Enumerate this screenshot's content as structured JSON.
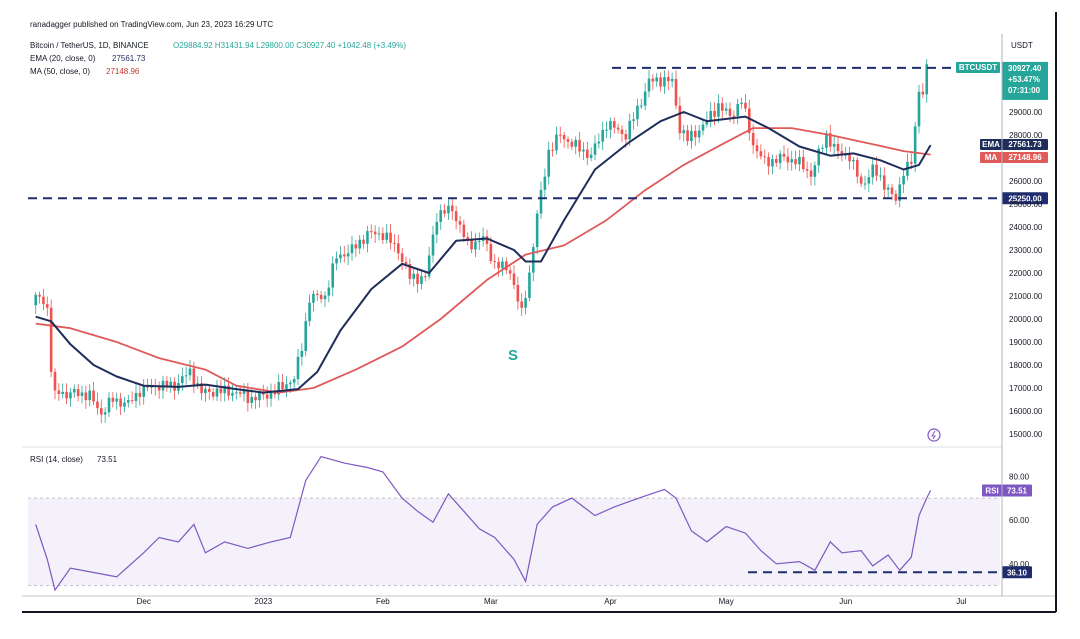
{
  "header": {
    "publisher": "ranadagger published on TradingView.com, Jun 23, 2023 16:29 UTC",
    "symbol_line": "Bitcoin / TetherUS, 1D, BINANCE",
    "ohlc": "O29884.92 H31431.94 L29800.00 C30927.40 +1042.48 (+3.49%)",
    "ema_label": "EMA (20, close, 0)",
    "ema_value": "27561.73",
    "ma_label": "MA (50, close, 0)",
    "ma_value": "27148.96",
    "rsi_label": "RSI (14, close)",
    "rsi_value": "73.51",
    "currency": "USDT"
  },
  "price_tags": {
    "symbol": "BTCUSDT",
    "last": "30927.40",
    "change": "+53.47%",
    "countdown": "07:31:00",
    "ema_tag": "EMA",
    "ema_val": "27561.73",
    "ma_tag": "MA",
    "ma_val": "27148.96",
    "support": "25250.00",
    "rsi_tag": "RSI",
    "rsi_val": "73.51",
    "rsi_support": "36.10"
  },
  "annotation": {
    "s_label": "S"
  },
  "colors": {
    "up": "#26a69a",
    "down": "#ef5350",
    "ema": "#1f2d5a",
    "ma": "#e05a5a",
    "rsi": "#7e57c2",
    "rsi_band": "#ede7f6",
    "dashed": "#1f2d6e"
  },
  "chart_data": [
    {
      "type": "candlestick",
      "title": "Bitcoin / TetherUS, 1D, BINANCE",
      "x_ticks": [
        "Dec",
        "2023",
        "Feb",
        "Mar",
        "Apr",
        "May",
        "Jun",
        "Jul"
      ],
      "y_ticks": [
        15000,
        16000,
        17000,
        18000,
        19000,
        20000,
        21000,
        22000,
        23000,
        24000,
        25000,
        26000,
        28000,
        29000
      ],
      "ylim": [
        14500,
        31800
      ],
      "horizontal_levels": [
        30900,
        25250
      ],
      "close_series": [
        [
          "2022-11-03",
          20600
        ],
        [
          "2022-11-05",
          21000
        ],
        [
          "2022-11-07",
          20500
        ],
        [
          "2022-11-08",
          17800
        ],
        [
          "2022-11-09",
          16600
        ],
        [
          "2022-11-10",
          16900
        ],
        [
          "2022-11-12",
          16700
        ],
        [
          "2022-11-15",
          16800
        ],
        [
          "2022-11-18",
          16650
        ],
        [
          "2022-11-21",
          15900
        ],
        [
          "2022-11-24",
          16500
        ],
        [
          "2022-11-28",
          16300
        ],
        [
          "2022-12-01",
          16900
        ],
        [
          "2022-12-05",
          17100
        ],
        [
          "2022-12-10",
          17100
        ],
        [
          "2022-12-14",
          17700
        ],
        [
          "2022-12-17",
          16800
        ],
        [
          "2022-12-20",
          16850
        ],
        [
          "2022-12-25",
          16850
        ],
        [
          "2022-12-30",
          16550
        ],
        [
          "2023-01-01",
          16600
        ],
        [
          "2023-01-05",
          16850
        ],
        [
          "2023-01-08",
          17200
        ],
        [
          "2023-01-10",
          17400
        ],
        [
          "2023-01-12",
          18800
        ],
        [
          "2023-01-14",
          20900
        ],
        [
          "2023-01-18",
          21000
        ],
        [
          "2023-01-21",
          22700
        ],
        [
          "2023-01-25",
          23000
        ],
        [
          "2023-01-29",
          23700
        ],
        [
          "2023-02-02",
          23700
        ],
        [
          "2023-02-06",
          23000
        ],
        [
          "2023-02-09",
          21800
        ],
        [
          "2023-02-13",
          21800
        ],
        [
          "2023-02-16",
          24500
        ],
        [
          "2023-02-20",
          24800
        ],
        [
          "2023-02-24",
          23200
        ],
        [
          "2023-02-28",
          23500
        ],
        [
          "2023-03-03",
          22400
        ],
        [
          "2023-03-07",
          22100
        ],
        [
          "2023-03-10",
          20200
        ],
        [
          "2023-03-12",
          22000
        ],
        [
          "2023-03-14",
          24500
        ],
        [
          "2023-03-17",
          27300
        ],
        [
          "2023-03-20",
          28000
        ],
        [
          "2023-03-24",
          27500
        ],
        [
          "2023-03-28",
          27100
        ],
        [
          "2023-04-01",
          28500
        ],
        [
          "2023-04-06",
          28000
        ],
        [
          "2023-04-10",
          29500
        ],
        [
          "2023-04-12",
          30300
        ],
        [
          "2023-04-15",
          30400
        ],
        [
          "2023-04-18",
          30300
        ],
        [
          "2023-04-20",
          28300
        ],
        [
          "2023-04-22",
          27800
        ],
        [
          "2023-04-26",
          28400
        ],
        [
          "2023-04-30",
          29300
        ],
        [
          "2023-05-03",
          28800
        ],
        [
          "2023-05-06",
          29500
        ],
        [
          "2023-05-09",
          27600
        ],
        [
          "2023-05-12",
          26800
        ],
        [
          "2023-05-16",
          27000
        ],
        [
          "2023-05-20",
          26900
        ],
        [
          "2023-05-24",
          26300
        ],
        [
          "2023-05-28",
          28000
        ],
        [
          "2023-05-31",
          27200
        ],
        [
          "2023-06-03",
          27100
        ],
        [
          "2023-06-06",
          25800
        ],
        [
          "2023-06-09",
          26500
        ],
        [
          "2023-06-12",
          25900
        ],
        [
          "2023-06-15",
          25100
        ],
        [
          "2023-06-17",
          26500
        ],
        [
          "2023-06-19",
          26800
        ],
        [
          "2023-06-20",
          28200
        ],
        [
          "2023-06-21",
          30000
        ],
        [
          "2023-06-22",
          29900
        ],
        [
          "2023-06-23",
          30927
        ]
      ],
      "ema20": [
        [
          "2022-11-03",
          20100
        ],
        [
          "2022-11-07",
          19900
        ],
        [
          "2022-11-12",
          18900
        ],
        [
          "2022-11-18",
          18000
        ],
        [
          "2022-11-24",
          17500
        ],
        [
          "2022-12-01",
          17100
        ],
        [
          "2022-12-10",
          17050
        ],
        [
          "2022-12-17",
          17150
        ],
        [
          "2022-12-25",
          16950
        ],
        [
          "2023-01-01",
          16800
        ],
        [
          "2023-01-10",
          16950
        ],
        [
          "2023-01-15",
          17700
        ],
        [
          "2023-01-21",
          19500
        ],
        [
          "2023-01-29",
          21300
        ],
        [
          "2023-02-06",
          22400
        ],
        [
          "2023-02-13",
          22000
        ],
        [
          "2023-02-20",
          23400
        ],
        [
          "2023-02-28",
          23500
        ],
        [
          "2023-03-07",
          23000
        ],
        [
          "2023-03-10",
          22500
        ],
        [
          "2023-03-14",
          22500
        ],
        [
          "2023-03-20",
          24300
        ],
        [
          "2023-03-28",
          26500
        ],
        [
          "2023-04-06",
          27700
        ],
        [
          "2023-04-14",
          28600
        ],
        [
          "2023-04-20",
          29000
        ],
        [
          "2023-04-26",
          28600
        ],
        [
          "2023-05-06",
          28800
        ],
        [
          "2023-05-12",
          28300
        ],
        [
          "2023-05-20",
          27500
        ],
        [
          "2023-05-28",
          27100
        ],
        [
          "2023-06-03",
          27200
        ],
        [
          "2023-06-10",
          26900
        ],
        [
          "2023-06-16",
          26500
        ],
        [
          "2023-06-20",
          26700
        ],
        [
          "2023-06-23",
          27562
        ]
      ],
      "ma50": [
        [
          "2022-11-03",
          19800
        ],
        [
          "2022-11-12",
          19600
        ],
        [
          "2022-11-24",
          19000
        ],
        [
          "2022-12-05",
          18300
        ],
        [
          "2022-12-17",
          17800
        ],
        [
          "2022-12-25",
          17100
        ],
        [
          "2023-01-05",
          16800
        ],
        [
          "2023-01-14",
          17000
        ],
        [
          "2023-01-25",
          17800
        ],
        [
          "2023-02-06",
          18800
        ],
        [
          "2023-02-16",
          20000
        ],
        [
          "2023-02-28",
          21700
        ],
        [
          "2023-03-10",
          22800
        ],
        [
          "2023-03-20",
          23200
        ],
        [
          "2023-03-31",
          24300
        ],
        [
          "2023-04-10",
          25600
        ],
        [
          "2023-04-20",
          26700
        ],
        [
          "2023-04-30",
          27600
        ],
        [
          "2023-05-08",
          28300
        ],
        [
          "2023-05-18",
          28300
        ],
        [
          "2023-05-28",
          28000
        ],
        [
          "2023-06-08",
          27600
        ],
        [
          "2023-06-16",
          27300
        ],
        [
          "2023-06-23",
          27149
        ]
      ]
    },
    {
      "type": "line",
      "title": "RSI (14, close)",
      "y_ticks": [
        40,
        60,
        80
      ],
      "ylim": [
        28,
        92
      ],
      "band": [
        30,
        70
      ],
      "support_level": 36.1,
      "series": [
        [
          "2022-11-03",
          58
        ],
        [
          "2022-11-06",
          42
        ],
        [
          "2022-11-08",
          28
        ],
        [
          "2022-11-12",
          38
        ],
        [
          "2022-11-18",
          36
        ],
        [
          "2022-11-24",
          34
        ],
        [
          "2022-12-01",
          45
        ],
        [
          "2022-12-05",
          52
        ],
        [
          "2022-12-10",
          50
        ],
        [
          "2022-12-14",
          58
        ],
        [
          "2022-12-17",
          45
        ],
        [
          "2022-12-22",
          50
        ],
        [
          "2022-12-28",
          47
        ],
        [
          "2023-01-03",
          50
        ],
        [
          "2023-01-08",
          52
        ],
        [
          "2023-01-12",
          78
        ],
        [
          "2023-01-16",
          89
        ],
        [
          "2023-01-22",
          86
        ],
        [
          "2023-01-28",
          84
        ],
        [
          "2023-02-01",
          82
        ],
        [
          "2023-02-06",
          70
        ],
        [
          "2023-02-10",
          64
        ],
        [
          "2023-02-14",
          59
        ],
        [
          "2023-02-18",
          72
        ],
        [
          "2023-02-22",
          64
        ],
        [
          "2023-02-26",
          56
        ],
        [
          "2023-03-02",
          52
        ],
        [
          "2023-03-07",
          42
        ],
        [
          "2023-03-10",
          32
        ],
        [
          "2023-03-13",
          58
        ],
        [
          "2023-03-17",
          66
        ],
        [
          "2023-03-22",
          70
        ],
        [
          "2023-03-28",
          62
        ],
        [
          "2023-04-02",
          66
        ],
        [
          "2023-04-10",
          71
        ],
        [
          "2023-04-15",
          74
        ],
        [
          "2023-04-18",
          70
        ],
        [
          "2023-04-22",
          55
        ],
        [
          "2023-04-26",
          50
        ],
        [
          "2023-05-01",
          57
        ],
        [
          "2023-05-06",
          54
        ],
        [
          "2023-05-10",
          46
        ],
        [
          "2023-05-14",
          40
        ],
        [
          "2023-05-20",
          41
        ],
        [
          "2023-05-24",
          37
        ],
        [
          "2023-05-28",
          50
        ],
        [
          "2023-05-31",
          45
        ],
        [
          "2023-06-05",
          46
        ],
        [
          "2023-06-08",
          39
        ],
        [
          "2023-06-12",
          44
        ],
        [
          "2023-06-15",
          37
        ],
        [
          "2023-06-18",
          43
        ],
        [
          "2023-06-20",
          62
        ],
        [
          "2023-06-22",
          70
        ],
        [
          "2023-06-23",
          73.51
        ]
      ]
    }
  ]
}
